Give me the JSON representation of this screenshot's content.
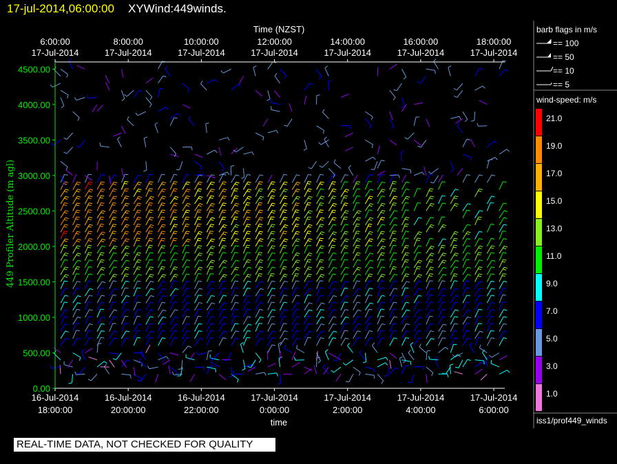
{
  "header": {
    "timestamp": "17-jul-2014,06:00:00",
    "title": "XYWind:449winds."
  },
  "warning": "REAL-TIME DATA, NOT CHECKED FOR QUALITY",
  "legend": {
    "barb_title": "barb flags in m/s",
    "barb_entries": [
      "== 100",
      "== 50",
      "== 10",
      "== 5"
    ],
    "speed_title": "wind-speed: m/s",
    "speed_scale": [
      {
        "label": "21.0",
        "color": "#ff0000"
      },
      {
        "label": "19.0",
        "color": "#ff8c00"
      },
      {
        "label": "17.0",
        "color": "#ffb000"
      },
      {
        "label": "15.0",
        "color": "#ffff00"
      },
      {
        "label": "13.0",
        "color": "#88ee22"
      },
      {
        "label": "11.0",
        "color": "#00ee00"
      },
      {
        "label": "9.0",
        "color": "#00ffff"
      },
      {
        "label": "7.0",
        "color": "#0000ff"
      },
      {
        "label": "5.0",
        "color": "#6699dd"
      },
      {
        "label": "3.0",
        "color": "#9900ee"
      },
      {
        "label": "1.0",
        "color": "#ee77dd"
      }
    ],
    "source": "iss1/prof449_winds"
  },
  "chart_data": {
    "type": "wind-barb",
    "top_axis_title": "Time (NZST)",
    "top_ticks": [
      [
        "6:00:00",
        "17-Jul-2014"
      ],
      [
        "8:00:00",
        "17-Jul-2014"
      ],
      [
        "10:00:00",
        "17-Jul-2014"
      ],
      [
        "12:00:00",
        "17-Jul-2014"
      ],
      [
        "14:00:00",
        "17-Jul-2014"
      ],
      [
        "16:00:00",
        "17-Jul-2014"
      ],
      [
        "18:00:00",
        "17-Jul-2014"
      ]
    ],
    "xlabel": "time",
    "x_ticks": [
      [
        "16-Jul-2014",
        "18:00:00"
      ],
      [
        "16-Jul-2014",
        "20:00:00"
      ],
      [
        "16-Jul-2014",
        "22:00:00"
      ],
      [
        "17-Jul-2014",
        "0:00:00"
      ],
      [
        "17-Jul-2014",
        "2:00:00"
      ],
      [
        "17-Jul-2014",
        "4:00:00"
      ],
      [
        "17-Jul-2014",
        "6:00:00"
      ]
    ],
    "xlim_hours_utc": [
      0,
      12.3
    ],
    "ylabel": "449 Profiler Altitude (m agl)",
    "y_ticks": [
      "0.00",
      "500.00",
      "1000.00",
      "1500.00",
      "2000.00",
      "2500.00",
      "3000.00",
      "3500.00",
      "4000.00",
      "4500.00"
    ],
    "ylim": [
      0,
      4600
    ],
    "profile_interval_minutes": 20,
    "level_spacing_m": 100,
    "speed_by_layer": [
      {
        "alt_range": [
          0,
          600
        ],
        "speed_m_s": 6,
        "note": "light, variable"
      },
      {
        "alt_range": [
          600,
          1500
        ],
        "speed_m_s": 7
      },
      {
        "alt_range": [
          1500,
          2000
        ],
        "speed_m_s": 12
      },
      {
        "alt_range": [
          2000,
          2900
        ],
        "speed_m_s": 19,
        "peak_m_s": 21
      },
      {
        "alt_range": [
          2900,
          4600
        ],
        "speed_m_s": 5,
        "note": "sparse, variable"
      }
    ]
  }
}
